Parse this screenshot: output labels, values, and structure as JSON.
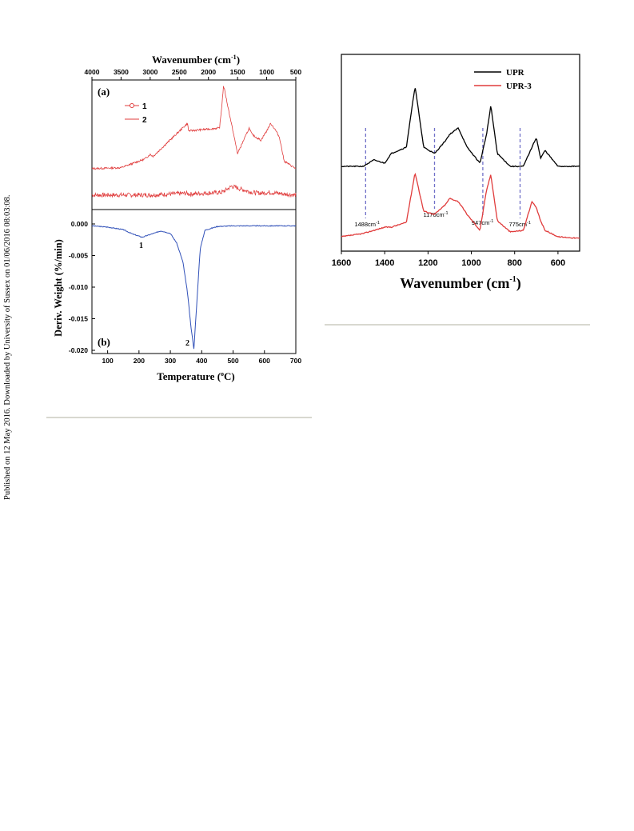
{
  "margin_note": "Published on 12 May 2016. Downloaded by University of Sussex on 01/06/2016 08:03:08.",
  "figure_left": {
    "panel_a": {
      "label": "(a)",
      "top_axis_label": "Wavenumber (cm",
      "top_axis_sup": "-1",
      "top_axis_close": ")",
      "top_ticks": [
        "4000",
        "3500",
        "3000",
        "2500",
        "2000",
        "1500",
        "1000",
        "500"
      ],
      "legend": [
        {
          "name": "1",
          "color": "#e03c3c",
          "marker": "circle"
        },
        {
          "name": "2",
          "color": "#e03c3c",
          "marker": "none"
        }
      ]
    },
    "panel_b": {
      "label": "(b)",
      "x_label": "Temperature (",
      "x_label_deg": "o",
      "x_label_close": "C)",
      "y_label": "Deriv. Weight (%/min)",
      "x_ticks": [
        "100",
        "200",
        "300",
        "400",
        "500",
        "600",
        "700"
      ],
      "y_ticks": [
        "0.000",
        "-0.005",
        "-0.010",
        "-0.015",
        "-0.020"
      ],
      "annotations": [
        "1",
        "2"
      ],
      "line_color": "#3050b8"
    }
  },
  "figure_right": {
    "x_label": "Wavenumber (cm",
    "x_label_sup": "-1",
    "x_label_close": ")",
    "x_ticks": [
      "1600",
      "1400",
      "1200",
      "1000",
      "800",
      "600"
    ],
    "legend": [
      {
        "name": "UPR",
        "color": "#000000"
      },
      {
        "name": "UPR-3",
        "color": "#e03c3c"
      }
    ],
    "markers": [
      {
        "value": "1488",
        "unit": "cm",
        "sup": "-1"
      },
      {
        "value": "1170",
        "unit": "cm",
        "sup": "-1"
      },
      {
        "value": "947",
        "unit": "cm",
        "sup": "-1"
      },
      {
        "value": "775",
        "unit": "cm",
        "sup": "-1"
      }
    ],
    "marker_color": "#7070c8"
  },
  "chart_data": [
    {
      "type": "line",
      "title": "",
      "xlabel": "Wavenumber (cm-1)",
      "ylabel": "",
      "xlim": [
        4000,
        500
      ],
      "series": [
        {
          "name": "1",
          "x": [
            4000,
            3500,
            3100,
            3000,
            2360,
            2340,
            1780,
            1740,
            1600,
            1460,
            1250,
            1100,
            970,
            800,
            700,
            500
          ],
          "y": [
            0.02,
            0.02,
            0.02,
            0.02,
            0.04,
            0.03,
            0.05,
            0.06,
            0.12,
            0.09,
            0.05,
            0.04,
            0.05,
            0.04,
            0.03,
            0.02
          ]
        },
        {
          "name": "2",
          "x": [
            4000,
            3500,
            3100,
            3000,
            2950,
            2360,
            2340,
            1810,
            1780,
            1740,
            1500,
            1300,
            1250,
            1100,
            1000,
            930,
            840,
            780,
            700,
            500
          ],
          "y": [
            0.12,
            0.13,
            0.22,
            0.27,
            0.25,
            0.6,
            0.52,
            0.55,
            0.72,
            1.0,
            0.28,
            0.55,
            0.48,
            0.42,
            0.52,
            0.6,
            0.52,
            0.45,
            0.2,
            0.12
          ]
        }
      ]
    },
    {
      "type": "line",
      "title": "",
      "xlabel": "Temperature (oC)",
      "ylabel": "Deriv. Weight (%/min)",
      "xlim": [
        50,
        700
      ],
      "ylim": [
        -0.021,
        0.0025
      ],
      "series": [
        {
          "name": "",
          "x": [
            50,
            100,
            150,
            180,
            210,
            240,
            270,
            300,
            320,
            340,
            355,
            365,
            375,
            385,
            395,
            410,
            450,
            500,
            600,
            700
          ],
          "y": [
            -0.0003,
            -0.0005,
            -0.0009,
            -0.0016,
            -0.0021,
            -0.0016,
            -0.0011,
            -0.0015,
            -0.003,
            -0.006,
            -0.011,
            -0.016,
            -0.0198,
            -0.012,
            -0.004,
            -0.001,
            -0.0004,
            -0.0003,
            -0.0003,
            -0.0003
          ]
        }
      ]
    },
    {
      "type": "line",
      "title": "",
      "xlabel": "Wavenumber (cm-1)",
      "ylabel": "",
      "xlim": [
        1600,
        500
      ],
      "series": [
        {
          "name": "UPR",
          "x": [
            1600,
            1500,
            1450,
            1400,
            1370,
            1300,
            1260,
            1220,
            1170,
            1120,
            1100,
            1060,
            1020,
            960,
            930,
            910,
            880,
            820,
            760,
            720,
            700,
            680,
            660,
            600,
            500
          ],
          "y": [
            0.5,
            0.5,
            0.54,
            0.52,
            0.58,
            0.62,
            1.0,
            0.62,
            0.58,
            0.66,
            0.7,
            0.74,
            0.62,
            0.52,
            0.7,
            0.88,
            0.58,
            0.5,
            0.5,
            0.62,
            0.68,
            0.55,
            0.6,
            0.5,
            0.5
          ]
        },
        {
          "name": "UPR-3",
          "x": [
            1600,
            1500,
            1450,
            1400,
            1370,
            1300,
            1260,
            1220,
            1170,
            1120,
            1100,
            1060,
            1020,
            960,
            930,
            910,
            880,
            820,
            760,
            720,
            700,
            680,
            660,
            600,
            500
          ],
          "y": [
            0.06,
            0.08,
            0.1,
            0.12,
            0.12,
            0.15,
            0.46,
            0.22,
            0.2,
            0.26,
            0.3,
            0.28,
            0.2,
            0.1,
            0.35,
            0.45,
            0.16,
            0.09,
            0.1,
            0.28,
            0.24,
            0.16,
            0.1,
            0.06,
            0.05
          ]
        }
      ]
    }
  ]
}
